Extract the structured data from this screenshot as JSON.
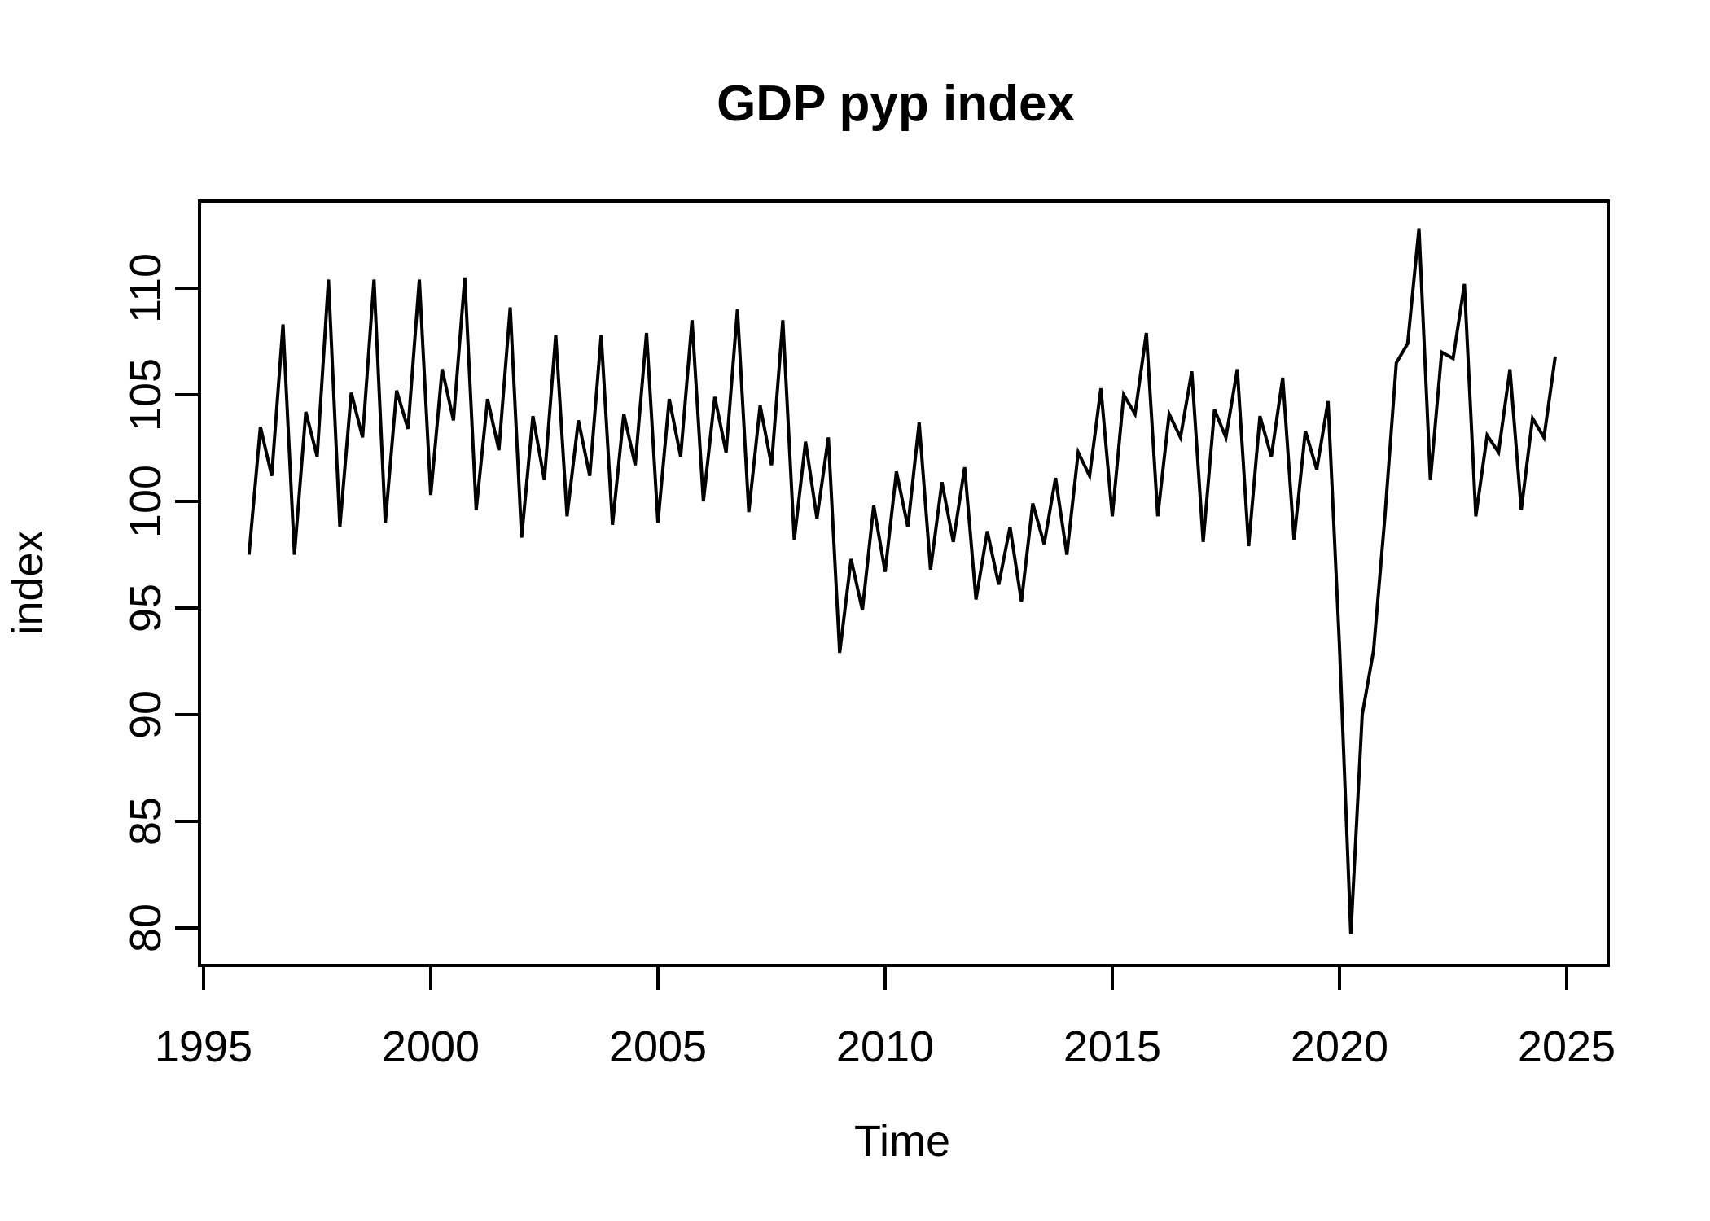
{
  "title": "GDP pyp index",
  "xlabel": "Time",
  "ylabel": "index",
  "line_color": "#000000",
  "background_color": "#ffffff",
  "chart_data": {
    "type": "line",
    "title": "GDP pyp index",
    "xlabel": "Time",
    "ylabel": "index",
    "frequency": "quarterly",
    "x_start": 1996.0,
    "x_step": 0.25,
    "values": [
      97.5,
      103.5,
      101.2,
      108.3,
      97.5,
      104.2,
      102.1,
      110.4,
      98.8,
      105.1,
      103.0,
      110.4,
      99.0,
      105.2,
      103.4,
      110.4,
      100.3,
      106.2,
      103.8,
      110.5,
      99.6,
      104.8,
      102.4,
      109.1,
      98.3,
      104.0,
      101.0,
      107.8,
      99.3,
      103.8,
      101.2,
      107.8,
      98.9,
      104.1,
      101.7,
      107.9,
      99.0,
      104.8,
      102.1,
      108.5,
      100.0,
      104.9,
      102.3,
      109.0,
      99.5,
      104.5,
      101.7,
      108.5,
      98.2,
      102.8,
      99.2,
      103.0,
      92.9,
      97.3,
      94.9,
      99.8,
      96.7,
      101.4,
      98.8,
      103.7,
      96.8,
      100.9,
      98.1,
      101.6,
      95.4,
      98.6,
      96.1,
      98.8,
      95.3,
      99.9,
      98.0,
      101.1,
      97.5,
      102.3,
      101.2,
      105.3,
      99.3,
      105.0,
      104.1,
      107.9,
      99.3,
      104.1,
      103.0,
      106.1,
      98.1,
      104.3,
      103.0,
      106.2,
      97.9,
      104.0,
      102.1,
      105.8,
      98.2,
      103.3,
      101.5,
      104.7,
      93.2,
      79.7,
      90.0,
      93.0,
      99.3,
      106.5,
      107.4,
      112.8,
      101.0,
      107.0,
      106.7,
      110.2,
      99.3,
      103.1,
      102.3,
      106.2,
      99.6,
      103.9,
      103.0,
      106.8
    ],
    "x_ticks": [
      1995,
      2000,
      2005,
      2010,
      2015,
      2020,
      2025
    ],
    "x_tick_labels": [
      "1995",
      "2000",
      "2005",
      "2010",
      "2015",
      "2020",
      "2025"
    ],
    "y_ticks": [
      80,
      85,
      90,
      95,
      100,
      105,
      110
    ],
    "y_tick_labels": [
      "80",
      "85",
      "90",
      "95",
      "100",
      "105",
      "110"
    ],
    "xlim": [
      1994.9,
      2025.9
    ],
    "ylim": [
      78.0,
      114.2
    ],
    "grid": false,
    "legend": null,
    "series_name": "GDP pyp index"
  }
}
